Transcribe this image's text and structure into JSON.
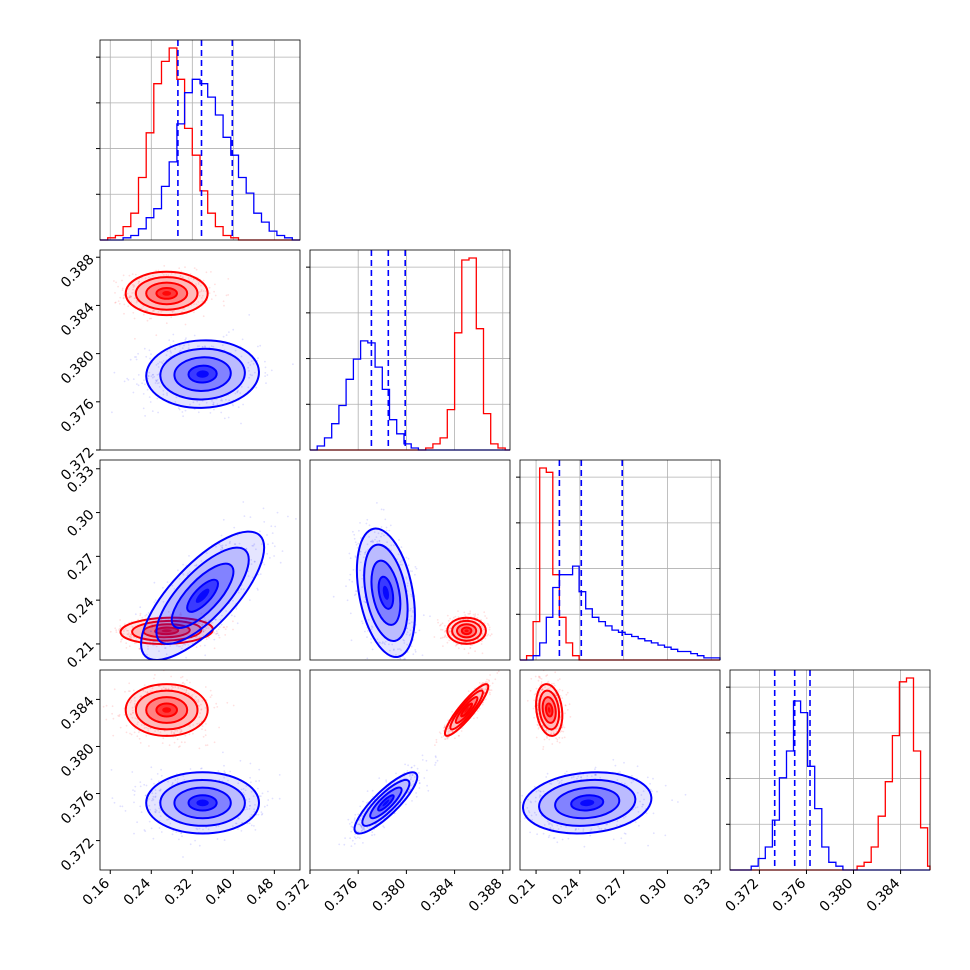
{
  "chart_data": {
    "type": "corner",
    "grid": true,
    "colors": {
      "red": "#ff0000",
      "blue": "#0000ff"
    },
    "parameters": [
      {
        "ticks": [
          "0.16",
          "0.24",
          "0.32",
          "0.40",
          "0.48"
        ],
        "tick_values": [
          0.16,
          0.24,
          0.32,
          0.4,
          0.48
        ],
        "range": [
          0.14,
          0.53
        ]
      },
      {
        "ticks": [
          "0.372",
          "0.376",
          "0.380",
          "0.384",
          "0.388"
        ],
        "tick_values": [
          0.372,
          0.376,
          0.38,
          0.384,
          0.388
        ],
        "range": [
          0.372,
          0.3886
        ]
      },
      {
        "ticks": [
          "0.21",
          "0.24",
          "0.27",
          "0.30",
          "0.33"
        ],
        "tick_values": [
          0.21,
          0.24,
          0.27,
          0.3,
          0.33
        ],
        "range": [
          0.199,
          0.336
        ]
      },
      {
        "ticks": [
          "0.372",
          "0.376",
          "0.380",
          "0.384"
        ],
        "tick_values": [
          0.372,
          0.376,
          0.38,
          0.384
        ],
        "range": [
          0.3695,
          0.3865
        ]
      }
    ],
    "quantiles_blue": [
      [
        0.292,
        0.338,
        0.398
      ],
      [
        0.3771,
        0.3785,
        0.3799
      ],
      [
        0.226,
        0.241,
        0.269
      ],
      [
        0.3733,
        0.375,
        0.3763
      ]
    ],
    "histograms": [
      {
        "bin_edges": [
          0.14,
          0.155,
          0.17,
          0.185,
          0.2,
          0.215,
          0.23,
          0.245,
          0.26,
          0.275,
          0.29,
          0.305,
          0.32,
          0.335,
          0.35,
          0.365,
          0.38,
          0.395,
          0.41,
          0.425,
          0.44,
          0.455,
          0.47,
          0.485,
          0.5,
          0.515,
          0.53
        ],
        "series": [
          {
            "color": "red",
            "counts": [
              0,
              1,
              2,
              6,
              12,
              28,
              48,
              70,
              80,
              86,
              72,
              50,
              38,
              22,
              12,
              6,
              2,
              1,
              0,
              0,
              0,
              0,
              0,
              0,
              0,
              0
            ]
          },
          {
            "color": "blue",
            "counts": [
              0,
              0,
              0,
              1,
              2,
              5,
              10,
              14,
              24,
              35,
              52,
              66,
              72,
              70,
              64,
              56,
              46,
              38,
              28,
              21,
              12,
              8,
              4,
              2,
              1,
              0
            ]
          }
        ]
      },
      {
        "bin_edges": [
          0.372,
          0.3726,
          0.3732,
          0.3738,
          0.3744,
          0.375,
          0.3756,
          0.3762,
          0.3768,
          0.3774,
          0.378,
          0.3786,
          0.3792,
          0.3798,
          0.3804,
          0.381,
          0.3816,
          0.3822,
          0.3828,
          0.3834,
          0.384,
          0.3846,
          0.3852,
          0.3858,
          0.3864,
          0.387,
          0.3876,
          0.3882,
          0.3886
        ],
        "series": [
          {
            "color": "red",
            "counts": [
              0,
              0,
              0,
              0,
              0,
              0,
              0,
              0,
              0,
              0,
              0,
              0,
              0,
              0,
              0,
              0,
              1,
              3,
              6,
              20,
              58,
              94,
              95,
              60,
              18,
              3,
              1,
              0
            ]
          },
          {
            "color": "blue",
            "counts": [
              0,
              2,
              6,
              13,
              22,
              35,
              45,
              54,
              53,
              41,
              30,
              15,
              8,
              3,
              1,
              0,
              0,
              0,
              0,
              0,
              0,
              0,
              0,
              0,
              0,
              0,
              0,
              0
            ]
          }
        ]
      },
      {
        "bin_edges": [
          0.199,
          0.2035,
          0.208,
          0.2125,
          0.217,
          0.2215,
          0.226,
          0.2305,
          0.235,
          0.2395,
          0.244,
          0.2485,
          0.253,
          0.2575,
          0.262,
          0.2665,
          0.271,
          0.2755,
          0.28,
          0.2845,
          0.289,
          0.2935,
          0.298,
          0.3025,
          0.307,
          0.3115,
          0.316,
          0.3205,
          0.325,
          0.336
        ],
        "series": [
          {
            "color": "red",
            "counts": [
              0,
              2,
              18,
              90,
              88,
              40,
              20,
              8,
              2,
              0,
              0,
              0,
              0,
              0,
              0,
              0,
              0,
              0,
              0,
              0,
              0,
              0,
              0,
              0,
              0,
              0,
              0,
              0,
              0
            ]
          },
          {
            "color": "blue",
            "counts": [
              0,
              0,
              2,
              8,
              20,
              34,
              40,
              40,
              44,
              32,
              24,
              20,
              18,
              16,
              14,
              13,
              12,
              11,
              10,
              9,
              8,
              7,
              6,
              5,
              4,
              4,
              3,
              2,
              1
            ]
          }
        ]
      },
      {
        "bin_edges": [
          0.3695,
          0.3701,
          0.3707,
          0.3713,
          0.3719,
          0.3725,
          0.3731,
          0.3737,
          0.3743,
          0.3749,
          0.3755,
          0.3761,
          0.3767,
          0.3773,
          0.3779,
          0.3785,
          0.3791,
          0.3797,
          0.3803,
          0.3809,
          0.3815,
          0.3821,
          0.3827,
          0.3833,
          0.3839,
          0.3845,
          0.3851,
          0.3857,
          0.3863,
          0.3865
        ],
        "series": [
          {
            "color": "red",
            "counts": [
              0,
              0,
              0,
              0,
              0,
              0,
              0,
              0,
              0,
              0,
              0,
              0,
              0,
              0,
              0,
              0,
              0,
              0,
              2,
              4,
              12,
              28,
              46,
              70,
              98,
              100,
              62,
              22,
              2
            ]
          },
          {
            "color": "blue",
            "counts": [
              0,
              0,
              0,
              2,
              6,
              12,
              26,
              48,
              62,
              88,
              82,
              54,
              32,
              12,
              4,
              2,
              0,
              0,
              0,
              0,
              0,
              0,
              0,
              0,
              0,
              0,
              0,
              0,
              0
            ]
          }
        ]
      }
    ],
    "joint_distributions": [
      {
        "row": 1,
        "col": 0,
        "red": {
          "mean": [
            0.27,
            0.385
          ],
          "sd": [
            0.04,
            0.0009
          ],
          "rho": 0.0
        },
        "blue": {
          "mean": [
            0.34,
            0.3783
          ],
          "sd": [
            0.055,
            0.0014
          ],
          "rho": 0.05
        }
      },
      {
        "row": 2,
        "col": 0,
        "red": {
          "mean": [
            0.27,
            0.219
          ],
          "sd": [
            0.045,
            0.0045
          ],
          "rho": 0.1
        },
        "blue": {
          "mean": [
            0.34,
            0.243
          ],
          "sd": [
            0.06,
            0.022
          ],
          "rho": 0.75
        }
      },
      {
        "row": 2,
        "col": 1,
        "red": {
          "mean": [
            0.385,
            0.219
          ],
          "sd": [
            0.0008,
            0.0045
          ],
          "rho": 0.0
        },
        "blue": {
          "mean": [
            0.3783,
            0.245
          ],
          "sd": [
            0.0012,
            0.022
          ],
          "rho": -0.35
        }
      },
      {
        "row": 3,
        "col": 0,
        "red": {
          "mean": [
            0.27,
            0.3831
          ],
          "sd": [
            0.04,
            0.0011
          ],
          "rho": 0.0
        },
        "blue": {
          "mean": [
            0.34,
            0.3752
          ],
          "sd": [
            0.055,
            0.0013
          ],
          "rho": 0.0
        }
      },
      {
        "row": 3,
        "col": 1,
        "red": {
          "mean": [
            0.385,
            0.3831
          ],
          "sd": [
            0.0009,
            0.0011
          ],
          "rho": 0.9
        },
        "blue": {
          "mean": [
            0.3783,
            0.3752
          ],
          "sd": [
            0.0013,
            0.0013
          ],
          "rho": 0.85
        }
      },
      {
        "row": 3,
        "col": 2,
        "red": {
          "mean": [
            0.219,
            0.3831
          ],
          "sd": [
            0.0045,
            0.0011
          ],
          "rho": -0.2
        },
        "blue": {
          "mean": [
            0.245,
            0.3752
          ],
          "sd": [
            0.022,
            0.0013
          ],
          "rho": 0.15
        }
      }
    ],
    "contour_levels": [
      0.5,
      1.0,
      1.5,
      2.0
    ],
    "xlabel": "",
    "ylabel": ""
  }
}
